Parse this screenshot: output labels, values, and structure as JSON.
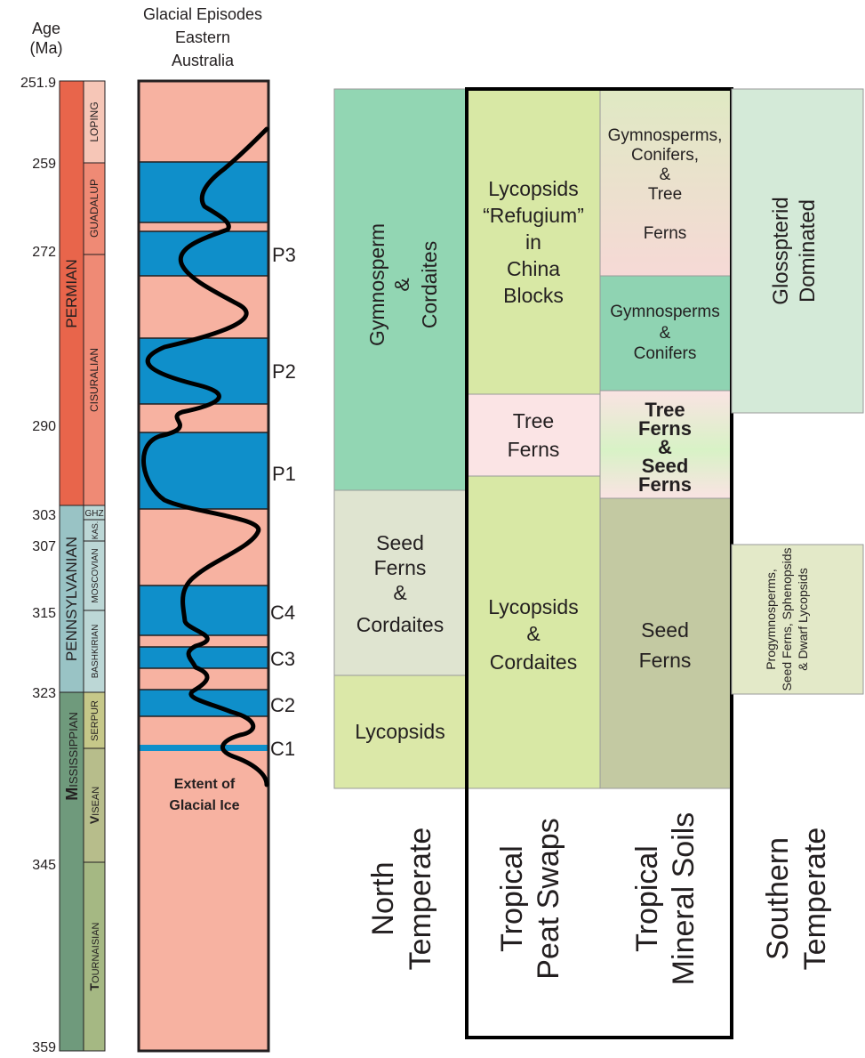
{
  "header": {
    "age_label_line1": "Age",
    "age_label_line2": "(Ma)",
    "glacial_title_line1": "Glacial Episodes",
    "glacial_title_line2": "Eastern",
    "glacial_title_line3": "Australia"
  },
  "age_ticks": [
    "251.9",
    "259",
    "272",
    "290",
    "303",
    "307",
    "315",
    "323",
    "345",
    "359"
  ],
  "periods": {
    "permian": "PERMIAN",
    "pennsylvanian": "PENNSYLVANIAN",
    "mississippian_initial": "M",
    "mississippian_rest": "ISSISSIPPIAN"
  },
  "epochs": {
    "loping": "LOPING",
    "guadalup": "GUADALUP",
    "cisuralian": "CISURALIAN",
    "ghz": "GHZ",
    "kas": "KAS.",
    "moscovian": "MOSCOVIAN",
    "bashkirian": "BASHKIRIAN",
    "serpur": "SERPUR",
    "visean_initial": "V",
    "visean_rest": "ISEAN",
    "tournaisian_initial": "T",
    "tournaisian_rest": "OURNAISIAN"
  },
  "glacial": {
    "labels": [
      "P3",
      "P2",
      "P1",
      "C4",
      "C3",
      "C2",
      "C1"
    ],
    "extent_line1": "Extent of",
    "extent_line2": "Glacial Ice"
  },
  "north_temperate": {
    "gymnosperm_line1": "Gymnosperm",
    "gymnosperm_line2": "&",
    "gymnosperm_line3": "Cordaites",
    "seed_ferns_lines": [
      "Seed",
      "Ferns",
      "&",
      "Cordaites"
    ],
    "lycopsids": "Lycopsids"
  },
  "tropical_peat": {
    "refugium_lines": [
      "Lycopsids",
      "“Refugium”",
      "in",
      "China",
      "Blocks"
    ],
    "tree_ferns_lines": [
      "Tree",
      "Ferns"
    ],
    "lycopsids_cordaites_lines": [
      "Lycopsids",
      "&",
      "Cordaites"
    ]
  },
  "tropical_mineral": {
    "gym_conifers_tree_lines": [
      "Gymnosperms,",
      "Conifers,",
      "&",
      "Tree",
      "Ferns"
    ],
    "gym_conifers_lines": [
      "Gymnosperms",
      "&",
      "Conifers"
    ],
    "tree_seed_lines": [
      "Tree",
      "Ferns",
      "&",
      "Seed",
      "Ferns"
    ],
    "seed_ferns_lines": [
      "Seed",
      "Ferns"
    ]
  },
  "southern_temperate": {
    "glossopterid_line1": "Glosspterid",
    "glossopterid_line2": "Dominated",
    "progymno_line1": "Progymnosperms,",
    "progymno_line2": "Seed Ferns, Sphenopsids",
    "progymno_line3": "& Dwarf Lycopsids"
  },
  "column_headers": {
    "north_line1": "North",
    "north_line2": "Temperate",
    "peat_line1": "Tropical",
    "peat_line2": "Peat Swaps",
    "mineral_line1": "Tropical",
    "mineral_line2": "Mineral Soils",
    "southern_line1": "Southern",
    "southern_line2": "Temperate"
  },
  "colors": {
    "permian": "#e8654b",
    "permian_epoch": "#ef8a75",
    "loping": "#f6c6b7",
    "pennsylvanian": "#99c3c5",
    "penn_epoch": "#bcd7d6",
    "mississippian": "#6f9a7c",
    "serpur": "#c6c889",
    "visean": "#b7bd8b",
    "tournaisian": "#a5b883",
    "glacial_background": "#f7b2a1",
    "glacial_ice": "#0f8fca",
    "gymnosperm_cordaites": "#92d6b3",
    "seed_ferns_cordaites": "#dfe4d0",
    "lycopsids": "#dbe8a8",
    "peat_lycopsids": "#d8e8a5",
    "tree_ferns": "#fbe4e5",
    "gym_conifers_tree": "#e8e4c6",
    "gym_conifers": "#8fd3b2",
    "seed_ferns": "#c3c9a2",
    "glossopterid": "#d4ead8",
    "progymno": "#e3e9c8"
  }
}
